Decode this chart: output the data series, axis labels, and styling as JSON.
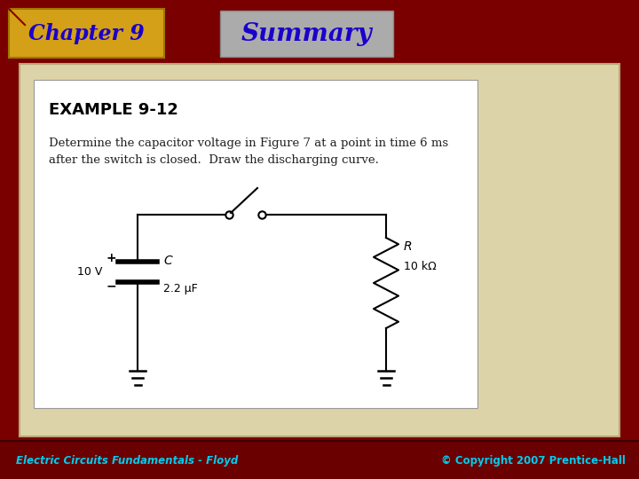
{
  "bg_color": "#7A0000",
  "slide_bg": "#DDD3A8",
  "white_box_bg": "#FFFFFF",
  "chapter_box_color": "#DAA520",
  "chapter_text": "Chapter 9",
  "chapter_text_color": "#1A00CC",
  "summary_box_color": "#B0B0B0",
  "summary_text": "Summary",
  "summary_text_color": "#1A00CC",
  "example_title": "EXAMPLE 9-12",
  "example_body": "Determine the capacitor voltage in Figure 7 at a point in time 6 ms\nafter the switch is closed.  Draw the discharging curve.",
  "footer_left": "Electric Circuits Fundamentals - Floyd",
  "footer_right": "© Copyright 2007 Prentice-Hall",
  "footer_color": "#00CCEE"
}
